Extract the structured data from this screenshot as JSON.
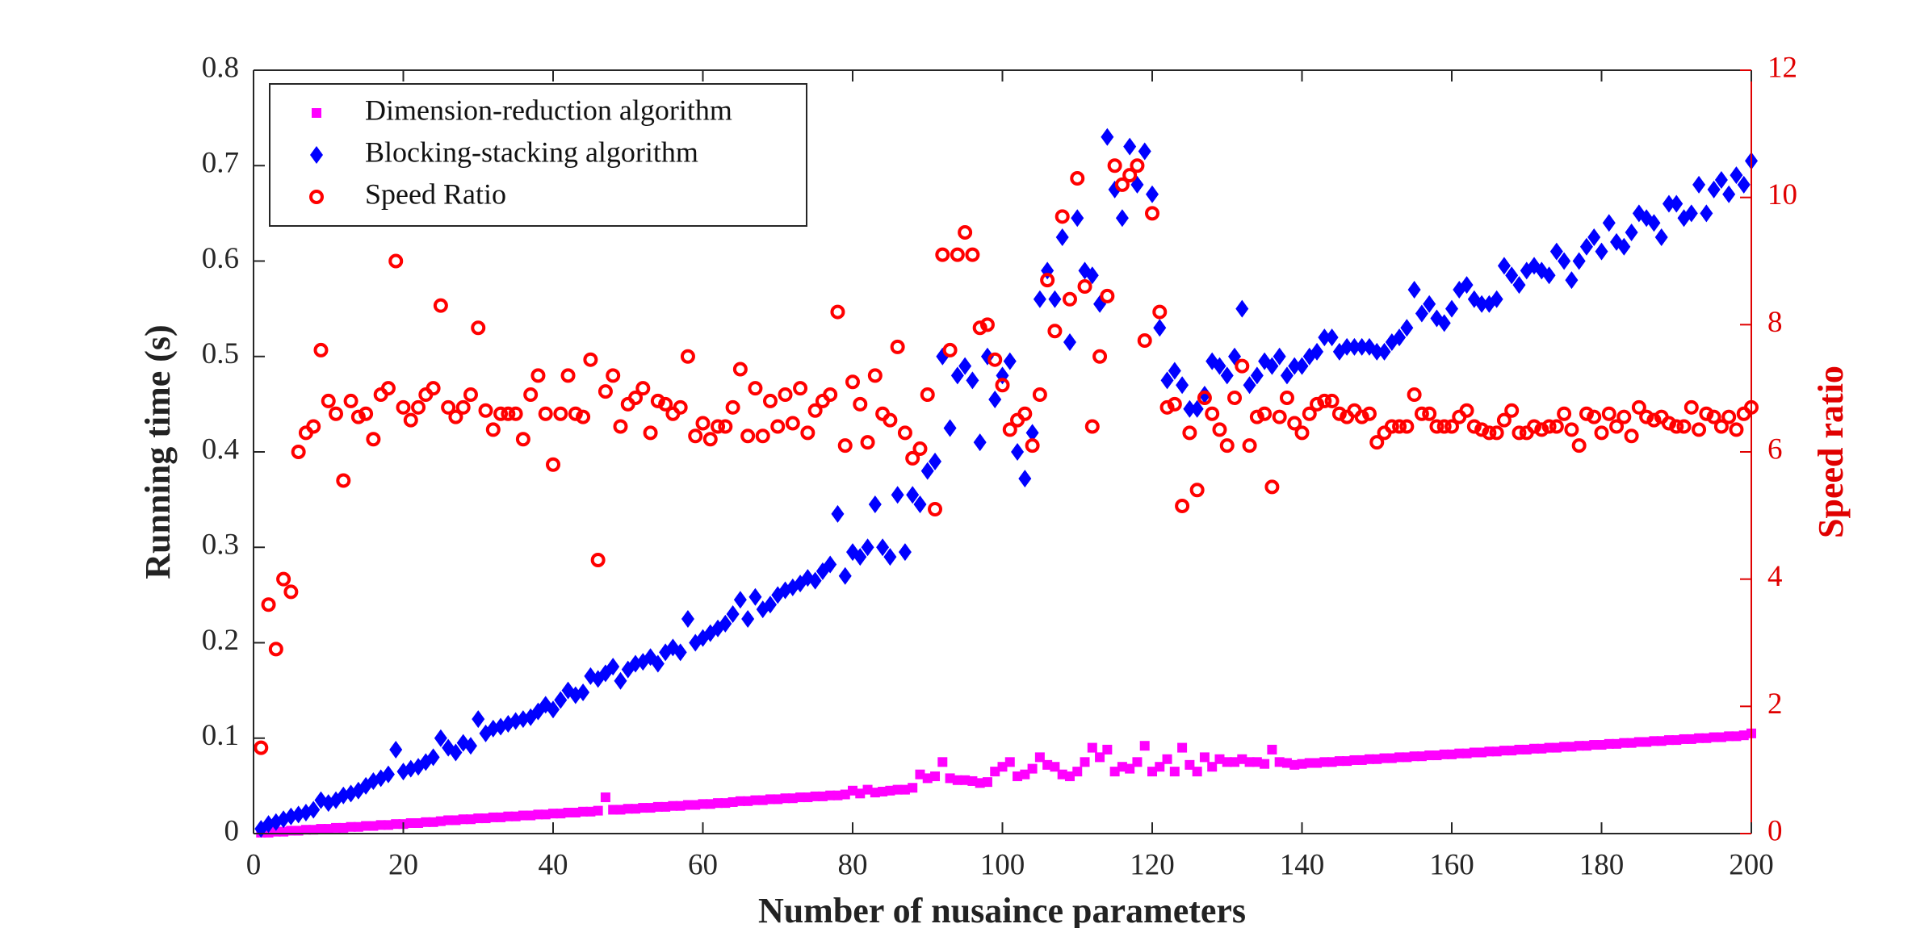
{
  "chart_data": {
    "type": "scatter",
    "xlabel": "Number of nusaince parameters",
    "ylabel": "Running time (s)",
    "y2label": "Speed ratio",
    "xlim": [
      0,
      200
    ],
    "xticks": [
      0,
      20,
      40,
      60,
      80,
      100,
      120,
      140,
      160,
      180,
      200
    ],
    "ylim": [
      0,
      0.8
    ],
    "yticks": [
      0,
      0.1,
      0.2,
      0.3,
      0.4,
      0.5,
      0.6,
      0.7,
      0.8
    ],
    "y2lim": [
      0,
      12
    ],
    "y2ticks": [
      0,
      2,
      4,
      6,
      8,
      10,
      12
    ],
    "y2color": "#e00000",
    "legend": "upper left",
    "x": [
      1,
      2,
      3,
      4,
      5,
      6,
      7,
      8,
      9,
      10,
      11,
      12,
      13,
      14,
      15,
      16,
      17,
      18,
      19,
      20,
      21,
      22,
      23,
      24,
      25,
      26,
      27,
      28,
      29,
      30,
      31,
      32,
      33,
      34,
      35,
      36,
      37,
      38,
      39,
      40,
      41,
      42,
      43,
      44,
      45,
      46,
      47,
      48,
      49,
      50,
      51,
      52,
      53,
      54,
      55,
      56,
      57,
      58,
      59,
      60,
      61,
      62,
      63,
      64,
      65,
      66,
      67,
      68,
      69,
      70,
      71,
      72,
      73,
      74,
      75,
      76,
      77,
      78,
      79,
      80,
      81,
      82,
      83,
      84,
      85,
      86,
      87,
      88,
      89,
      90,
      91,
      92,
      93,
      94,
      95,
      96,
      97,
      98,
      99,
      100,
      101,
      102,
      103,
      104,
      105,
      106,
      107,
      108,
      109,
      110,
      111,
      112,
      113,
      114,
      115,
      116,
      117,
      118,
      119,
      120,
      121,
      122,
      123,
      124,
      125,
      126,
      127,
      128,
      129,
      130,
      131,
      132,
      133,
      134,
      135,
      136,
      137,
      138,
      139,
      140,
      141,
      142,
      143,
      144,
      145,
      146,
      147,
      148,
      149,
      150,
      151,
      152,
      153,
      154,
      155,
      156,
      157,
      158,
      159,
      160,
      161,
      162,
      163,
      164,
      165,
      166,
      167,
      168,
      169,
      170,
      171,
      172,
      173,
      174,
      175,
      176,
      177,
      178,
      179,
      180,
      181,
      182,
      183,
      184,
      185,
      186,
      187,
      188,
      189,
      190,
      191,
      192,
      193,
      194,
      195,
      196,
      197,
      198,
      199,
      200
    ],
    "series": [
      {
        "name": "Dimension-reduction algorithm",
        "color": "#ff00ff",
        "marker": "square",
        "axis": "y",
        "values": [
          0.001,
          0.001,
          0.002,
          0.002,
          0.003,
          0.003,
          0.004,
          0.004,
          0.005,
          0.005,
          0.006,
          0.006,
          0.007,
          0.007,
          0.008,
          0.008,
          0.009,
          0.009,
          0.01,
          0.01,
          0.011,
          0.011,
          0.012,
          0.012,
          0.013,
          0.014,
          0.014,
          0.015,
          0.015,
          0.016,
          0.016,
          0.017,
          0.017,
          0.018,
          0.018,
          0.019,
          0.019,
          0.02,
          0.02,
          0.021,
          0.021,
          0.022,
          0.022,
          0.023,
          0.023,
          0.024,
          0.038,
          0.025,
          0.025,
          0.026,
          0.026,
          0.027,
          0.027,
          0.028,
          0.028,
          0.029,
          0.029,
          0.03,
          0.03,
          0.031,
          0.031,
          0.032,
          0.032,
          0.033,
          0.034,
          0.034,
          0.035,
          0.035,
          0.036,
          0.036,
          0.037,
          0.037,
          0.038,
          0.038,
          0.039,
          0.039,
          0.04,
          0.04,
          0.041,
          0.045,
          0.042,
          0.046,
          0.043,
          0.044,
          0.045,
          0.046,
          0.046,
          0.048,
          0.062,
          0.058,
          0.06,
          0.075,
          0.058,
          0.056,
          0.056,
          0.055,
          0.053,
          0.054,
          0.065,
          0.07,
          0.075,
          0.06,
          0.062,
          0.068,
          0.08,
          0.072,
          0.07,
          0.062,
          0.06,
          0.065,
          0.075,
          0.09,
          0.08,
          0.088,
          0.065,
          0.07,
          0.068,
          0.075,
          0.092,
          0.065,
          0.07,
          0.078,
          0.065,
          0.09,
          0.072,
          0.065,
          0.08,
          0.07,
          0.078,
          0.075,
          0.075,
          0.078,
          0.075,
          0.075,
          0.073,
          0.088,
          0.075,
          0.074,
          0.072,
          0.073,
          0.074,
          0.074,
          0.075,
          0.075,
          0.076,
          0.076,
          0.077,
          0.077,
          0.078,
          0.078,
          0.079,
          0.079,
          0.08,
          0.08,
          0.081,
          0.081,
          0.082,
          0.082,
          0.083,
          0.083,
          0.084,
          0.084,
          0.085,
          0.085,
          0.086,
          0.086,
          0.087,
          0.087,
          0.088,
          0.088,
          0.089,
          0.089,
          0.09,
          0.09,
          0.091,
          0.091,
          0.092,
          0.092,
          0.093,
          0.093,
          0.094,
          0.094,
          0.095,
          0.095,
          0.096,
          0.096,
          0.097,
          0.097,
          0.098,
          0.098,
          0.099,
          0.099,
          0.1,
          0.1,
          0.101,
          0.101,
          0.102,
          0.102,
          0.103,
          0.105
        ]
      },
      {
        "name": "Blocking-stacking algorithm",
        "color": "#0000ff",
        "marker": "diamond",
        "axis": "y",
        "values": [
          0.005,
          0.01,
          0.012,
          0.015,
          0.018,
          0.02,
          0.022,
          0.025,
          0.035,
          0.032,
          0.035,
          0.04,
          0.042,
          0.045,
          0.05,
          0.055,
          0.058,
          0.062,
          0.088,
          0.065,
          0.068,
          0.07,
          0.075,
          0.08,
          0.1,
          0.09,
          0.085,
          0.095,
          0.092,
          0.12,
          0.105,
          0.11,
          0.112,
          0.115,
          0.118,
          0.12,
          0.122,
          0.128,
          0.135,
          0.13,
          0.14,
          0.15,
          0.145,
          0.148,
          0.165,
          0.162,
          0.168,
          0.175,
          0.16,
          0.172,
          0.178,
          0.18,
          0.185,
          0.178,
          0.19,
          0.195,
          0.19,
          0.225,
          0.2,
          0.205,
          0.21,
          0.215,
          0.22,
          0.23,
          0.245,
          0.225,
          0.248,
          0.235,
          0.24,
          0.25,
          0.255,
          0.258,
          0.262,
          0.268,
          0.265,
          0.275,
          0.282,
          0.335,
          0.27,
          0.295,
          0.29,
          0.3,
          0.345,
          0.3,
          0.29,
          0.355,
          0.295,
          0.355,
          0.345,
          0.38,
          0.39,
          0.5,
          0.425,
          0.48,
          0.49,
          0.475,
          0.41,
          0.5,
          0.455,
          0.48,
          0.495,
          0.4,
          0.372,
          0.42,
          0.56,
          0.59,
          0.56,
          0.625,
          0.515,
          0.645,
          0.59,
          0.585,
          0.555,
          0.73,
          0.675,
          0.645,
          0.72,
          0.68,
          0.715,
          0.67,
          0.53,
          0.475,
          0.485,
          0.47,
          0.445,
          0.445,
          0.46,
          0.495,
          0.49,
          0.48,
          0.5,
          0.55,
          0.47,
          0.48,
          0.495,
          0.49,
          0.5,
          0.48,
          0.49,
          0.49,
          0.5,
          0.505,
          0.52,
          0.52,
          0.505,
          0.51,
          0.51,
          0.51,
          0.51,
          0.505,
          0.505,
          0.515,
          0.52,
          0.53,
          0.57,
          0.545,
          0.555,
          0.54,
          0.535,
          0.55,
          0.57,
          0.575,
          0.56,
          0.555,
          0.555,
          0.56,
          0.595,
          0.585,
          0.575,
          0.59,
          0.595,
          0.59,
          0.585,
          0.61,
          0.6,
          0.58,
          0.6,
          0.615,
          0.625,
          0.61,
          0.64,
          0.62,
          0.615,
          0.63,
          0.65,
          0.645,
          0.64,
          0.625,
          0.66,
          0.66,
          0.645,
          0.65,
          0.68,
          0.65,
          0.675,
          0.685,
          0.67,
          0.69,
          0.68,
          0.705
        ]
      },
      {
        "name": "Speed Ratio",
        "color": "#ff0000",
        "marker": "circle",
        "axis": "y2",
        "values": [
          1.35,
          3.6,
          2.9,
          4.0,
          3.8,
          6.0,
          6.3,
          6.4,
          7.6,
          6.8,
          6.6,
          5.55,
          6.8,
          6.55,
          6.6,
          6.2,
          6.9,
          7.0,
          9.0,
          6.7,
          6.5,
          6.7,
          6.9,
          7.0,
          8.3,
          6.7,
          6.55,
          6.7,
          6.9,
          7.95,
          6.65,
          6.35,
          6.6,
          6.6,
          6.6,
          6.2,
          6.9,
          7.2,
          6.6,
          5.8,
          6.6,
          7.2,
          6.6,
          6.55,
          7.45,
          4.3,
          6.95,
          7.2,
          6.4,
          6.75,
          6.85,
          7.0,
          6.3,
          6.8,
          6.75,
          6.6,
          6.7,
          7.5,
          6.25,
          6.45,
          6.2,
          6.4,
          6.4,
          6.7,
          7.3,
          6.25,
          7.0,
          6.25,
          6.8,
          6.4,
          6.9,
          6.45,
          7.0,
          6.3,
          6.65,
          6.8,
          6.9,
          8.2,
          6.1,
          7.1,
          6.75,
          6.15,
          7.2,
          6.6,
          6.5,
          7.65,
          6.3,
          5.9,
          6.05,
          6.9,
          5.1,
          9.1,
          7.6,
          9.1,
          9.45,
          9.1,
          7.95,
          8.0,
          7.45,
          7.05,
          6.35,
          6.5,
          6.6,
          6.1,
          6.9,
          8.7,
          7.9,
          9.7,
          8.4,
          10.3,
          8.6,
          6.4,
          7.5,
          8.45,
          10.5,
          10.2,
          10.35,
          10.5,
          7.75,
          9.75,
          8.2,
          6.7,
          6.75,
          5.15,
          6.3,
          5.4,
          6.85,
          6.6,
          6.35,
          6.1,
          6.85,
          7.35,
          6.1,
          6.55,
          6.6,
          5.45,
          6.55,
          6.85,
          6.45,
          6.3,
          6.6,
          6.75,
          6.8,
          6.8,
          6.6,
          6.55,
          6.65,
          6.55,
          6.6,
          6.15,
          6.3,
          6.4,
          6.4,
          6.4,
          6.9,
          6.6,
          6.6,
          6.4,
          6.4,
          6.4,
          6.55,
          6.65,
          6.4,
          6.35,
          6.3,
          6.3,
          6.5,
          6.65,
          6.3,
          6.3,
          6.4,
          6.35,
          6.4,
          6.4,
          6.6,
          6.35,
          6.1,
          6.6,
          6.55,
          6.3,
          6.6,
          6.4,
          6.55,
          6.25,
          6.7,
          6.55,
          6.5,
          6.55,
          6.45,
          6.4,
          6.4,
          6.7,
          6.35,
          6.6,
          6.55,
          6.4,
          6.55,
          6.35,
          6.6,
          6.7
        ]
      }
    ]
  }
}
